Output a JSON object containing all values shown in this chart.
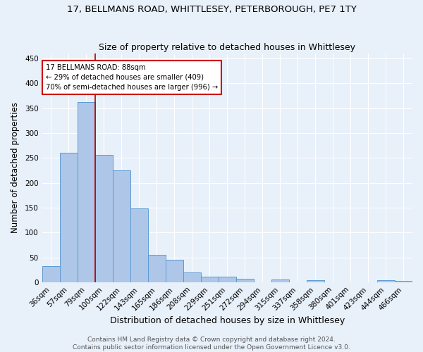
{
  "title": "17, BELLMANS ROAD, WHITTLESEY, PETERBOROUGH, PE7 1TY",
  "subtitle": "Size of property relative to detached houses in Whittlesey",
  "xlabel": "Distribution of detached houses by size in Whittlesey",
  "ylabel": "Number of detached properties",
  "categories": [
    "36sqm",
    "57sqm",
    "79sqm",
    "100sqm",
    "122sqm",
    "143sqm",
    "165sqm",
    "186sqm",
    "208sqm",
    "229sqm",
    "251sqm",
    "272sqm",
    "294sqm",
    "315sqm",
    "337sqm",
    "358sqm",
    "380sqm",
    "401sqm",
    "423sqm",
    "444sqm",
    "466sqm"
  ],
  "values": [
    33,
    260,
    363,
    256,
    225,
    148,
    55,
    45,
    20,
    11,
    11,
    7,
    0,
    6,
    0,
    4,
    0,
    0,
    0,
    4,
    3
  ],
  "bar_color": "#aec6e8",
  "bar_edge_color": "#5b9bd5",
  "background_color": "#e8f0fa",
  "grid_color": "#ffffff",
  "red_line_x": 2.5,
  "annotation_text": "17 BELLMANS ROAD: 88sqm\n← 29% of detached houses are smaller (409)\n70% of semi-detached houses are larger (996) →",
  "annotation_box_color": "#ffffff",
  "annotation_box_edge_color": "#cc0000",
  "footer": "Contains HM Land Registry data © Crown copyright and database right 2024.\nContains public sector information licensed under the Open Government Licence v3.0.",
  "ylim": [
    0,
    460
  ],
  "title_fontsize": 9.5,
  "subtitle_fontsize": 9,
  "xlabel_fontsize": 9,
  "ylabel_fontsize": 8.5,
  "tick_fontsize": 7.5,
  "footer_fontsize": 6.5
}
